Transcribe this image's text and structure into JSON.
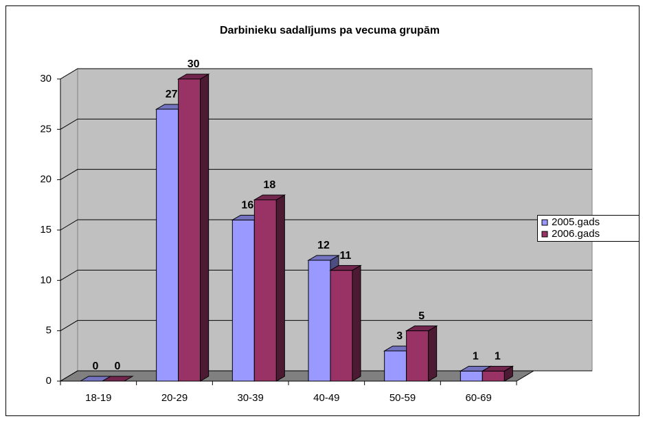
{
  "chart_data": {
    "type": "bar3d",
    "title": "Darbinieku sadalījums pa vecuma grupām",
    "categories": [
      "18-19",
      "20-29",
      "30-39",
      "40-49",
      "50-59",
      "60-69"
    ],
    "series": [
      {
        "name": "2005.gads",
        "color": "#9999ff",
        "values": [
          0,
          27,
          16,
          12,
          3,
          1
        ]
      },
      {
        "name": "2006.gads",
        "color": "#993366",
        "values": [
          0,
          30,
          18,
          11,
          5,
          1
        ]
      }
    ],
    "ylim": [
      0,
      30
    ],
    "yticks": [
      0,
      5,
      10,
      15,
      20,
      25,
      30
    ],
    "grid": true,
    "legend": "right"
  }
}
